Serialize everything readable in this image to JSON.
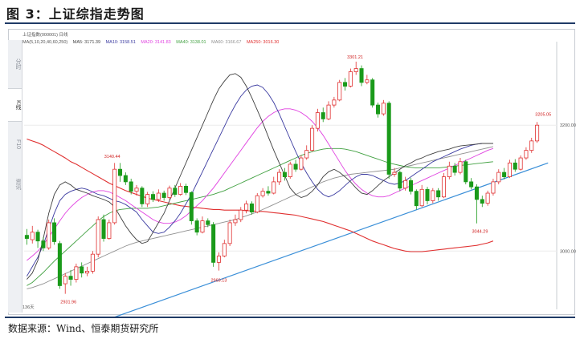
{
  "figure": {
    "title": "图 3：上证综指走势图",
    "source": "数据来源：Wind、恒泰期货研究所"
  },
  "header": {
    "instrument": "上证指数(000001) 日线"
  },
  "legend": {
    "ma_params": "MA(5,10,20,40,60,250)",
    "ma5": "MA5: 3171.39",
    "ma10": "MA10: 3158.51",
    "ma20": "MA20: 3141.83",
    "ma40": "MA40: 3138.01",
    "ma60": "MA60: 3166.67",
    "ma250": "MA250: 3016.30"
  },
  "side_tabs": [
    "分时",
    "K线",
    "F10",
    "资讯"
  ],
  "colors": {
    "up": "#e03030",
    "down": "#1a9a1a",
    "ma5": "#404040",
    "ma10": "#3a3aa0",
    "ma20": "#e040e0",
    "ma40": "#40a040",
    "ma60": "#909090",
    "ma250": "#e03030",
    "trend": "#3a8fd8"
  },
  "chart_data": {
    "type": "candlestick",
    "yticks": [
      "3200.00",
      "3000.00"
    ],
    "bottom_label": "136天",
    "annotations": [
      {
        "label": "3301.21",
        "value": 3301.21
      },
      {
        "label": "3140.44",
        "value": 3140.44
      },
      {
        "label": "2969.13",
        "value": 2969.13
      },
      {
        "label": "2931.96",
        "value": 2931.96
      },
      {
        "label": "3044.29",
        "value": 3044.29
      },
      {
        "label": "3205.05",
        "value": 3205.05
      }
    ],
    "candles": [
      [
        3025,
        3020,
        3035,
        3010
      ],
      [
        3018,
        3030,
        3040,
        3012
      ],
      [
        3030,
        3016,
        3034,
        3005
      ],
      [
        3016,
        3005,
        3022,
        3000
      ],
      [
        3005,
        3045,
        3050,
        3002
      ],
      [
        3045,
        3015,
        3052,
        3010
      ],
      [
        3012,
        2945,
        3016,
        2940
      ],
      [
        2948,
        2960,
        2965,
        2932
      ],
      [
        2960,
        2955,
        2970,
        2945
      ],
      [
        2955,
        2975,
        2980,
        2950
      ],
      [
        2975,
        2965,
        2982,
        2958
      ],
      [
        2965,
        2968,
        2975,
        2960
      ],
      [
        2968,
        2995,
        3000,
        2964
      ],
      [
        2995,
        3050,
        3055,
        2990
      ],
      [
        3050,
        3020,
        3058,
        3015
      ],
      [
        3020,
        3045,
        3050,
        3018
      ],
      [
        3045,
        3130,
        3140,
        3042
      ],
      [
        3130,
        3120,
        3140,
        3110
      ],
      [
        3120,
        3110,
        3125,
        3105
      ],
      [
        3110,
        3095,
        3115,
        3090
      ],
      [
        3095,
        3100,
        3105,
        3088
      ],
      [
        3100,
        3075,
        3103,
        3070
      ],
      [
        3075,
        3090,
        3094,
        3070
      ],
      [
        3090,
        3082,
        3095,
        3078
      ],
      [
        3082,
        3092,
        3098,
        3078
      ],
      [
        3092,
        3085,
        3096,
        3080
      ],
      [
        3085,
        3100,
        3104,
        3082
      ],
      [
        3100,
        3090,
        3105,
        3086
      ],
      [
        3090,
        3103,
        3108,
        3088
      ],
      [
        3103,
        3093,
        3107,
        3089
      ],
      [
        3093,
        3048,
        3095,
        3042
      ],
      [
        3048,
        3030,
        3052,
        3025
      ],
      [
        3030,
        3048,
        3055,
        3028
      ],
      [
        3048,
        3042,
        3052,
        3038
      ],
      [
        3042,
        2982,
        3046,
        2975
      ],
      [
        2982,
        2992,
        2998,
        2969
      ],
      [
        2992,
        3012,
        3018,
        2990
      ],
      [
        3012,
        3045,
        3050,
        3008
      ],
      [
        3045,
        3050,
        3058,
        3040
      ],
      [
        3050,
        3065,
        3070,
        3046
      ],
      [
        3065,
        3075,
        3080,
        3060
      ],
      [
        3075,
        3062,
        3079,
        3058
      ],
      [
        3062,
        3088,
        3092,
        3060
      ],
      [
        3088,
        3095,
        3100,
        3085
      ],
      [
        3095,
        3092,
        3103,
        3088
      ],
      [
        3092,
        3110,
        3118,
        3090
      ],
      [
        3110,
        3125,
        3130,
        3105
      ],
      [
        3125,
        3118,
        3132,
        3112
      ],
      [
        3118,
        3138,
        3142,
        3115
      ],
      [
        3138,
        3130,
        3145,
        3126
      ],
      [
        3130,
        3148,
        3152,
        3128
      ],
      [
        3148,
        3160,
        3168,
        3145
      ],
      [
        3160,
        3195,
        3200,
        3158
      ],
      [
        3195,
        3220,
        3226,
        3190
      ],
      [
        3220,
        3210,
        3228,
        3205
      ],
      [
        3210,
        3232,
        3238,
        3208
      ],
      [
        3232,
        3240,
        3245,
        3228
      ],
      [
        3240,
        3268,
        3272,
        3238
      ],
      [
        3268,
        3262,
        3275,
        3255
      ],
      [
        3262,
        3285,
        3290,
        3260
      ],
      [
        3285,
        3290,
        3301,
        3280
      ],
      [
        3290,
        3268,
        3295,
        3262
      ],
      [
        3268,
        3272,
        3280,
        3265
      ],
      [
        3272,
        3232,
        3275,
        3228
      ],
      [
        3232,
        3218,
        3236,
        3212
      ],
      [
        3218,
        3235,
        3240,
        3215
      ],
      [
        3235,
        3122,
        3238,
        3115
      ],
      [
        3122,
        3125,
        3132,
        3118
      ],
      [
        3125,
        3100,
        3128,
        3095
      ],
      [
        3100,
        3112,
        3118,
        3096
      ],
      [
        3112,
        3095,
        3116,
        3090
      ],
      [
        3095,
        3072,
        3098,
        3066
      ],
      [
        3072,
        3098,
        3105,
        3070
      ],
      [
        3098,
        3080,
        3102,
        3074
      ],
      [
        3080,
        3096,
        3100,
        3076
      ],
      [
        3096,
        3086,
        3100,
        3080
      ],
      [
        3086,
        3118,
        3124,
        3084
      ],
      [
        3118,
        3135,
        3142,
        3114
      ],
      [
        3135,
        3125,
        3140,
        3120
      ],
      [
        3125,
        3142,
        3148,
        3122
      ],
      [
        3142,
        3110,
        3145,
        3106
      ],
      [
        3110,
        3102,
        3116,
        3098
      ],
      [
        3102,
        3082,
        3106,
        3044
      ],
      [
        3082,
        3076,
        3088,
        3070
      ],
      [
        3076,
        3092,
        3096,
        3072
      ],
      [
        3092,
        3110,
        3115,
        3088
      ],
      [
        3110,
        3125,
        3130,
        3106
      ],
      [
        3125,
        3118,
        3132,
        3114
      ],
      [
        3118,
        3140,
        3145,
        3116
      ],
      [
        3140,
        3130,
        3146,
        3126
      ],
      [
        3130,
        3148,
        3152,
        3128
      ],
      [
        3148,
        3160,
        3165,
        3145
      ],
      [
        3160,
        3175,
        3180,
        3156
      ],
      [
        3175,
        3200,
        3205,
        3172
      ]
    ],
    "ma_lines": {
      "ma250": [
        3178,
        3175,
        3172,
        3168,
        3163,
        3158,
        3153,
        3148,
        3142,
        3138,
        3133,
        3128,
        3123,
        3118,
        3113,
        3108,
        3104,
        3100,
        3096,
        3093,
        3090,
        3087,
        3084,
        3082,
        3080,
        3078,
        3076,
        3074,
        3072,
        3071,
        3070,
        3069,
        3068,
        3067,
        3066,
        3066,
        3065,
        3065,
        3065,
        3065,
        3064,
        3064,
        3063,
        3063,
        3062,
        3061,
        3060,
        3059,
        3058,
        3057,
        3055,
        3053,
        3051,
        3049,
        3047,
        3044,
        3041,
        3038,
        3035,
        3032,
        3028,
        3024,
        3020,
        3016,
        3013,
        3010,
        3007,
        3004,
        3002,
        3000,
        2999,
        2999,
        2999,
        3000,
        3001,
        3002,
        3003,
        3004,
        3005,
        3006,
        3007,
        3008,
        3009,
        3011,
        3013,
        3016
      ],
      "ma60": [
        2940,
        2942,
        2945,
        2948,
        2952,
        2956,
        2960,
        2964,
        2968,
        2972,
        2976,
        2980,
        2984,
        2988,
        2992,
        2996,
        3000,
        3004,
        3008,
        3011,
        3014,
        3016,
        3018,
        3020,
        3022,
        3024,
        3026,
        3028,
        3030,
        3032,
        3034,
        3036,
        3038,
        3040,
        3042,
        3044,
        3046,
        3048,
        3050,
        3053,
        3056,
        3059,
        3062,
        3066,
        3070,
        3074,
        3078,
        3082,
        3086,
        3090,
        3094,
        3098,
        3102,
        3106,
        3110,
        3113,
        3116,
        3118,
        3120,
        3122,
        3123,
        3124,
        3125,
        3126,
        3127,
        3128,
        3129,
        3130,
        3132,
        3134,
        3136,
        3138,
        3140,
        3142,
        3144,
        3146,
        3148,
        3150,
        3152,
        3154,
        3156,
        3158,
        3160,
        3162,
        3164,
        3166
      ],
      "ma40": [
        2945,
        2950,
        2958,
        2966,
        2975,
        2984,
        2992,
        3000,
        3008,
        3016,
        3024,
        3032,
        3040,
        3048,
        3055,
        3060,
        3064,
        3066,
        3067,
        3068,
        3068,
        3068,
        3068,
        3069,
        3070,
        3072,
        3074,
        3076,
        3078,
        3080,
        3082,
        3084,
        3086,
        3088,
        3090,
        3093,
        3096,
        3100,
        3104,
        3108,
        3112,
        3116,
        3120,
        3124,
        3128,
        3132,
        3136,
        3140,
        3144,
        3148,
        3152,
        3155,
        3158,
        3160,
        3162,
        3163,
        3163,
        3163,
        3162,
        3160,
        3158,
        3155,
        3152,
        3149,
        3146,
        3143,
        3140,
        3138,
        3136,
        3134,
        3133,
        3132,
        3132,
        3132,
        3132,
        3132,
        3133,
        3134,
        3135,
        3136,
        3137,
        3138,
        3139,
        3140,
        3141,
        3142
      ],
      "ma20": [
        2985,
        2992,
        3000,
        3010,
        3022,
        3035,
        3048,
        3060,
        3070,
        3078,
        3085,
        3090,
        3094,
        3096,
        3096,
        3094,
        3090,
        3085,
        3080,
        3074,
        3068,
        3062,
        3056,
        3050,
        3046,
        3044,
        3044,
        3046,
        3050,
        3056,
        3064,
        3072,
        3080,
        3090,
        3100,
        3112,
        3124,
        3136,
        3148,
        3160,
        3172,
        3184,
        3196,
        3206,
        3214,
        3220,
        3224,
        3226,
        3226,
        3224,
        3220,
        3214,
        3206,
        3196,
        3184,
        3170,
        3156,
        3142,
        3128,
        3116,
        3106,
        3098,
        3092,
        3088,
        3086,
        3086,
        3088,
        3092,
        3096,
        3100,
        3104,
        3108,
        3112,
        3116,
        3120,
        3124,
        3128,
        3132,
        3136,
        3140,
        3144,
        3148,
        3152,
        3156,
        3160,
        3163
      ],
      "ma10": [
        2960,
        2975,
        2990,
        3010,
        3035,
        3060,
        3080,
        3090,
        3095,
        3098,
        3100,
        3098,
        3094,
        3090,
        3088,
        3084,
        3080,
        3078,
        3074,
        3068,
        3062,
        3050,
        3040,
        3030,
        3028,
        3030,
        3038,
        3048,
        3060,
        3075,
        3090,
        3108,
        3126,
        3144,
        3162,
        3180,
        3198,
        3216,
        3232,
        3246,
        3256,
        3262,
        3264,
        3260,
        3250,
        3236,
        3218,
        3198,
        3178,
        3158,
        3140,
        3124,
        3110,
        3098,
        3090,
        3086,
        3090,
        3096,
        3104,
        3112,
        3118,
        3122,
        3122,
        3120,
        3116,
        3112,
        3108,
        3106,
        3108,
        3112,
        3118,
        3124,
        3130,
        3136,
        3142,
        3146,
        3150,
        3154,
        3158,
        3162,
        3165,
        3168,
        3170,
        3171,
        3171,
        3171
      ],
      "ma5": [
        2955,
        2965,
        2985,
        3020,
        3060,
        3090,
        3105,
        3110,
        3105,
        3098,
        3095,
        3092,
        3088,
        3085,
        3082,
        3078,
        3070,
        3055,
        3040,
        3028,
        3018,
        3012,
        3015,
        3030,
        3045,
        3060,
        3080,
        3100,
        3120,
        3140,
        3160,
        3180,
        3200,
        3220,
        3240,
        3258,
        3270,
        3280,
        3282,
        3276,
        3262,
        3244,
        3224,
        3204,
        3182,
        3160,
        3140,
        3120,
        3100,
        3090,
        3085,
        3088,
        3095,
        3105,
        3118,
        3126,
        3130,
        3125,
        3118,
        3110,
        3100,
        3092,
        3090,
        3096,
        3104,
        3112,
        3118,
        3124,
        3130,
        3136,
        3140,
        3145,
        3148,
        3152,
        3155,
        3158,
        3160,
        3162,
        3165,
        3167,
        3168,
        3169,
        3170,
        3171,
        3171,
        3171
      ]
    },
    "trend_line": [
      {
        "index": 16,
        "value": 2895
      },
      {
        "index": 95,
        "value": 3140
      }
    ]
  }
}
